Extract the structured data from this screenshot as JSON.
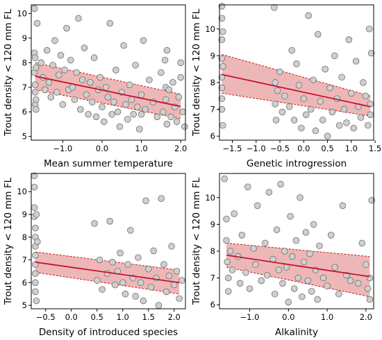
{
  "chart_data": [
    {
      "type": "scatter",
      "xlabel": "Mean summer temperature",
      "ylabel": "Trout density < 120 mm FL",
      "xlim": [
        -1.8,
        2.12
      ],
      "ylim": [
        4.85,
        10.35
      ],
      "xticks": [
        -1.0,
        0.0,
        1.0,
        2.0
      ],
      "xtick_labels": [
        "−1.0",
        "0.0",
        "1.0",
        "2.0"
      ],
      "yticks": [
        5,
        6,
        7,
        8,
        9,
        10
      ],
      "ytick_labels": [
        "5",
        "6",
        "7",
        "8",
        "9",
        "10"
      ],
      "fit": {
        "x": [
          -1.7,
          2.0
        ],
        "y": [
          7.45,
          6.22
        ]
      },
      "band_upper": {
        "x": [
          -1.7,
          2.0
        ],
        "y": [
          8.0,
          6.72
        ]
      },
      "band_lower": {
        "x": [
          -1.7,
          2.0
        ],
        "y": [
          6.9,
          5.72
        ]
      },
      "points": [
        [
          -1.72,
          10.2
        ],
        [
          -1.72,
          8.4
        ],
        [
          -1.72,
          7.6
        ],
        [
          -1.7,
          8.2
        ],
        [
          -1.7,
          7.1
        ],
        [
          -1.7,
          6.8
        ],
        [
          -1.7,
          6.3
        ],
        [
          -1.68,
          7.8
        ],
        [
          -1.68,
          6.5
        ],
        [
          -1.68,
          6.1
        ],
        [
          -1.65,
          9.6
        ],
        [
          -1.55,
          8.0
        ],
        [
          -1.5,
          7.4
        ],
        [
          -1.45,
          6.9
        ],
        [
          -1.4,
          8.5
        ],
        [
          -1.35,
          7.2
        ],
        [
          -1.3,
          6.6
        ],
        [
          -1.25,
          7.9
        ],
        [
          -1.2,
          8.9
        ],
        [
          -1.15,
          6.8
        ],
        [
          -1.1,
          7.5
        ],
        [
          -1.05,
          8.3
        ],
        [
          -1.0,
          6.3
        ],
        [
          -0.95,
          7.7
        ],
        [
          -0.9,
          9.4
        ],
        [
          -0.85,
          6.9
        ],
        [
          -0.8,
          8.1
        ],
        [
          -0.75,
          7.0
        ],
        [
          -0.7,
          6.5
        ],
        [
          -0.65,
          7.6
        ],
        [
          -0.6,
          9.8
        ],
        [
          -0.55,
          6.1
        ],
        [
          -0.5,
          7.3
        ],
        [
          -0.45,
          8.6
        ],
        [
          -0.4,
          6.7
        ],
        [
          -0.35,
          5.9
        ],
        [
          -0.3,
          7.2
        ],
        [
          -0.25,
          6.4
        ],
        [
          -0.2,
          8.2
        ],
        [
          -0.15,
          5.8
        ],
        [
          -0.1,
          6.9
        ],
        [
          -0.05,
          7.4
        ],
        [
          0.0,
          6.2
        ],
        [
          0.05,
          5.6
        ],
        [
          0.1,
          7.0
        ],
        [
          0.15,
          6.6
        ],
        [
          0.2,
          9.6
        ],
        [
          0.25,
          5.9
        ],
        [
          0.3,
          6.4
        ],
        [
          0.35,
          7.7
        ],
        [
          0.4,
          6.0
        ],
        [
          0.45,
          5.4
        ],
        [
          0.5,
          6.8
        ],
        [
          0.55,
          8.7
        ],
        [
          0.6,
          6.3
        ],
        [
          0.65,
          5.7
        ],
        [
          0.7,
          7.1
        ],
        [
          0.75,
          6.5
        ],
        [
          0.8,
          5.9
        ],
        [
          0.85,
          7.9
        ],
        [
          0.9,
          6.2
        ],
        [
          0.95,
          5.3
        ],
        [
          1.0,
          6.7
        ],
        [
          1.0,
          5.9
        ],
        [
          1.05,
          8.9
        ],
        [
          1.1,
          6.1
        ],
        [
          1.2,
          7.3
        ],
        [
          1.3,
          6.4
        ],
        [
          1.4,
          5.8
        ],
        [
          1.5,
          7.6
        ],
        [
          1.55,
          6.0
        ],
        [
          1.6,
          8.1
        ],
        [
          1.62,
          7.0
        ],
        [
          1.62,
          6.5
        ],
        [
          1.65,
          5.5
        ],
        [
          1.65,
          8.5
        ],
        [
          1.7,
          6.9
        ],
        [
          1.75,
          5.8
        ],
        [
          1.8,
          7.2
        ],
        [
          1.85,
          6.2
        ],
        [
          1.9,
          5.6
        ],
        [
          1.95,
          6.6
        ],
        [
          2.0,
          7.4
        ],
        [
          2.0,
          8.0
        ],
        [
          2.05,
          6.0
        ],
        [
          2.1,
          5.4
        ]
      ]
    },
    {
      "type": "scatter",
      "xlabel": "Genetic introgression",
      "ylabel": "Trout density < 120 mm FL",
      "xlim": [
        -1.77,
        1.47
      ],
      "ylim": [
        5.85,
        10.9
      ],
      "xticks": [
        -1.5,
        -1.0,
        -0.5,
        0.0,
        0.5,
        1.0,
        1.5
      ],
      "xtick_labels": [
        "−1.5",
        "−1.0",
        "−0.5",
        "0.0",
        "0.5",
        "1.0",
        "1.5"
      ],
      "yticks": [
        6,
        7,
        8,
        9,
        10
      ],
      "ytick_labels": [
        "6",
        "7",
        "8",
        "9",
        "10"
      ],
      "fit": {
        "x": [
          -1.72,
          1.4
        ],
        "y": [
          8.3,
          7.1
        ]
      },
      "band_upper": {
        "x": [
          -1.72,
          1.4
        ],
        "y": [
          9.05,
          7.5
        ]
      },
      "band_lower": {
        "x": [
          -1.72,
          1.4
        ],
        "y": [
          7.6,
          6.75
        ]
      },
      "points": [
        [
          -1.72,
          10.85
        ],
        [
          -1.72,
          10.4
        ],
        [
          -1.72,
          9.6
        ],
        [
          -1.72,
          8.9
        ],
        [
          -1.72,
          8.2
        ],
        [
          -1.72,
          7.8
        ],
        [
          -1.72,
          7.4
        ],
        [
          -1.72,
          7.0
        ],
        [
          -1.7,
          6.4
        ],
        [
          -1.7,
          8.6
        ],
        [
          -1.7,
          9.9
        ],
        [
          -0.62,
          10.8
        ],
        [
          -0.6,
          7.2
        ],
        [
          -0.6,
          8.0
        ],
        [
          -0.58,
          6.6
        ],
        [
          -0.55,
          7.7
        ],
        [
          -0.5,
          8.4
        ],
        [
          -0.45,
          6.9
        ],
        [
          -0.4,
          7.5
        ],
        [
          -0.3,
          7.1
        ],
        [
          -0.25,
          9.2
        ],
        [
          -0.2,
          6.6
        ],
        [
          -0.15,
          8.7
        ],
        [
          -0.1,
          7.9
        ],
        [
          -0.05,
          6.3
        ],
        [
          0.0,
          7.4
        ],
        [
          0.05,
          6.8
        ],
        [
          0.1,
          10.5
        ],
        [
          0.15,
          7.0
        ],
        [
          0.2,
          8.1
        ],
        [
          0.25,
          6.2
        ],
        [
          0.3,
          9.8
        ],
        [
          0.35,
          7.3
        ],
        [
          0.4,
          6.6
        ],
        [
          0.45,
          8.5
        ],
        [
          0.5,
          6.0
        ],
        [
          0.55,
          7.8
        ],
        [
          0.6,
          6.9
        ],
        [
          0.65,
          9.0
        ],
        [
          0.7,
          7.4
        ],
        [
          0.75,
          6.4
        ],
        [
          0.8,
          8.2
        ],
        [
          0.85,
          7.0
        ],
        [
          0.9,
          6.5
        ],
        [
          0.95,
          9.6
        ],
        [
          1.0,
          7.6
        ],
        [
          1.05,
          6.3
        ],
        [
          1.1,
          8.8
        ],
        [
          1.15,
          7.1
        ],
        [
          1.2,
          6.7
        ],
        [
          1.25,
          8.0
        ],
        [
          1.3,
          7.5
        ],
        [
          1.35,
          6.4
        ],
        [
          1.38,
          10.0
        ],
        [
          1.4,
          7.2
        ],
        [
          1.4,
          6.8
        ],
        [
          1.42,
          9.1
        ]
      ]
    },
    {
      "type": "scatter",
      "xlabel": "Density of introduced species",
      "ylabel": "Trout density < 120 mm FL",
      "xlim": [
        -0.78,
        2.22
      ],
      "ylim": [
        4.85,
        10.8
      ],
      "xticks": [
        -0.5,
        0.0,
        0.5,
        1.0,
        1.5,
        2.0
      ],
      "xtick_labels": [
        "−0.5",
        "0.0",
        "0.5",
        "1.0",
        "1.5",
        "2.0"
      ],
      "yticks": [
        5,
        6,
        7,
        8,
        9,
        10
      ],
      "ytick_labels": [
        "5",
        "6",
        "7",
        "8",
        "9",
        "10"
      ],
      "fit": {
        "x": [
          -0.7,
          2.1
        ],
        "y": [
          6.9,
          6.0
        ]
      },
      "band_upper": {
        "x": [
          -0.7,
          2.1
        ],
        "y": [
          7.35,
          6.55
        ]
      },
      "band_lower": {
        "x": [
          -0.7,
          2.1
        ],
        "y": [
          6.45,
          5.5
        ]
      },
      "points": [
        [
          -0.72,
          10.7
        ],
        [
          -0.72,
          10.2
        ],
        [
          -0.72,
          9.3
        ],
        [
          -0.72,
          8.9
        ],
        [
          -0.7,
          8.4
        ],
        [
          -0.7,
          8.0
        ],
        [
          -0.7,
          7.6
        ],
        [
          -0.7,
          7.2
        ],
        [
          -0.7,
          6.8
        ],
        [
          -0.7,
          6.4
        ],
        [
          -0.7,
          6.0
        ],
        [
          -0.7,
          5.6
        ],
        [
          -0.68,
          5.2
        ],
        [
          -0.68,
          9.0
        ],
        [
          -0.66,
          7.8
        ],
        [
          0.45,
          8.6
        ],
        [
          0.5,
          6.1
        ],
        [
          0.55,
          7.0
        ],
        [
          0.6,
          5.7
        ],
        [
          0.7,
          6.4
        ],
        [
          0.75,
          8.7
        ],
        [
          0.8,
          6.9
        ],
        [
          0.85,
          5.9
        ],
        [
          0.9,
          6.5
        ],
        [
          0.95,
          7.3
        ],
        [
          1.0,
          6.0
        ],
        [
          1.05,
          5.5
        ],
        [
          1.1,
          6.8
        ],
        [
          1.15,
          8.3
        ],
        [
          1.2,
          6.2
        ],
        [
          1.25,
          5.4
        ],
        [
          1.3,
          7.1
        ],
        [
          1.35,
          6.0
        ],
        [
          1.4,
          5.2
        ],
        [
          1.45,
          9.6
        ],
        [
          1.5,
          6.6
        ],
        [
          1.55,
          5.8
        ],
        [
          1.6,
          7.4
        ],
        [
          1.65,
          6.2
        ],
        [
          1.7,
          5.0
        ],
        [
          1.75,
          9.7
        ],
        [
          1.8,
          6.8
        ],
        [
          1.85,
          5.6
        ],
        [
          1.9,
          6.3
        ],
        [
          1.95,
          7.6
        ],
        [
          2.0,
          5.9
        ],
        [
          2.05,
          6.5
        ],
        [
          2.1,
          5.3
        ],
        [
          2.15,
          6.1
        ]
      ]
    },
    {
      "type": "scatter",
      "xlabel": "Alkalinity",
      "ylabel": "Trout density < 120 mm FL",
      "xlim": [
        -1.78,
        2.2
      ],
      "ylim": [
        5.85,
        10.9
      ],
      "xticks": [
        -1.0,
        0.0,
        1.0,
        2.0
      ],
      "xtick_labels": [
        "−1.0",
        "0.0",
        "1.0",
        "2.0"
      ],
      "yticks": [
        6,
        7,
        8,
        9,
        10
      ],
      "ytick_labels": [
        "6",
        "7",
        "8",
        "9",
        "10"
      ],
      "fit": {
        "x": [
          -1.6,
          2.1
        ],
        "y": [
          7.85,
          7.05
        ]
      },
      "band_upper": {
        "x": [
          -1.6,
          2.1
        ],
        "y": [
          8.3,
          7.8
        ]
      },
      "band_lower": {
        "x": [
          -1.6,
          2.1
        ],
        "y": [
          7.4,
          6.3
        ]
      },
      "points": [
        [
          -1.65,
          10.7
        ],
        [
          -1.6,
          9.2
        ],
        [
          -1.6,
          8.4
        ],
        [
          -1.58,
          7.6
        ],
        [
          -1.55,
          7.0
        ],
        [
          -1.55,
          6.5
        ],
        [
          -1.5,
          8.0
        ],
        [
          -1.45,
          7.3
        ],
        [
          -1.4,
          9.4
        ],
        [
          -1.3,
          7.8
        ],
        [
          -1.25,
          6.8
        ],
        [
          -1.2,
          8.6
        ],
        [
          -1.1,
          7.2
        ],
        [
          -1.05,
          10.4
        ],
        [
          -1.0,
          6.6
        ],
        [
          -0.9,
          8.1
        ],
        [
          -0.85,
          7.5
        ],
        [
          -0.8,
          9.7
        ],
        [
          -0.7,
          6.9
        ],
        [
          -0.6,
          8.3
        ],
        [
          -0.55,
          7.1
        ],
        [
          -0.5,
          10.2
        ],
        [
          -0.4,
          7.7
        ],
        [
          -0.35,
          6.4
        ],
        [
          -0.3,
          8.8
        ],
        [
          -0.25,
          7.3
        ],
        [
          -0.2,
          10.5
        ],
        [
          -0.15,
          6.8
        ],
        [
          -0.1,
          8.0
        ],
        [
          -0.05,
          7.4
        ],
        [
          0.0,
          6.1
        ],
        [
          0.05,
          9.3
        ],
        [
          0.1,
          7.8
        ],
        [
          0.15,
          6.6
        ],
        [
          0.2,
          8.4
        ],
        [
          0.25,
          7.0
        ],
        [
          0.3,
          10.0
        ],
        [
          0.35,
          6.3
        ],
        [
          0.4,
          7.6
        ],
        [
          0.45,
          8.7
        ],
        [
          0.5,
          6.9
        ],
        [
          0.55,
          7.9
        ],
        [
          0.6,
          6.5
        ],
        [
          0.65,
          9.0
        ],
        [
          0.7,
          7.3
        ],
        [
          0.75,
          6.2
        ],
        [
          0.8,
          8.2
        ],
        [
          0.9,
          7.0
        ],
        [
          1.0,
          6.7
        ],
        [
          1.1,
          8.6
        ],
        [
          1.2,
          7.4
        ],
        [
          1.3,
          6.4
        ],
        [
          1.4,
          9.7
        ],
        [
          1.5,
          7.1
        ],
        [
          1.6,
          6.9
        ],
        [
          1.8,
          6.8
        ],
        [
          1.9,
          8.3
        ],
        [
          2.0,
          7.5
        ],
        [
          2.05,
          6.6
        ],
        [
          2.1,
          7.0
        ],
        [
          2.1,
          6.2
        ],
        [
          2.15,
          9.9
        ]
      ]
    }
  ]
}
